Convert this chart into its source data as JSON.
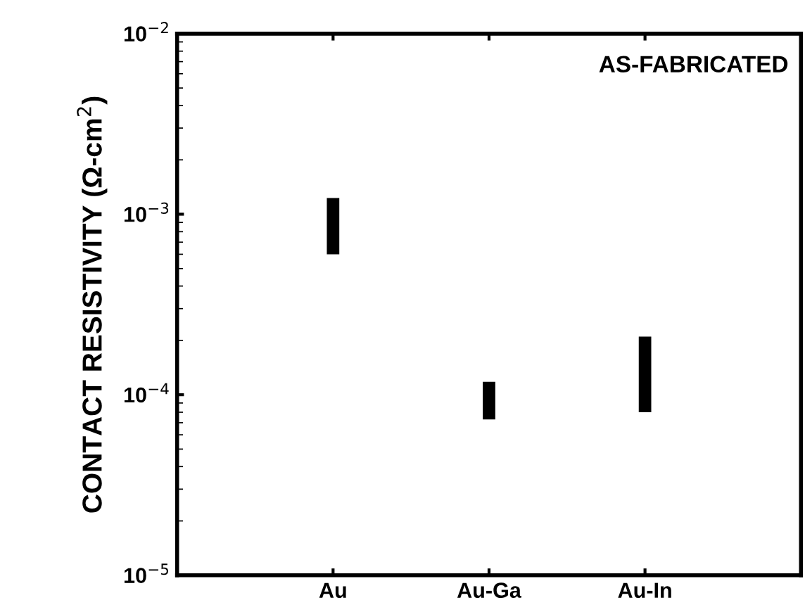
{
  "chart_data": {
    "type": "bar",
    "categories": [
      "Au",
      "Au-Ga",
      "Au-In"
    ],
    "base": [
      0.0006,
      7.3e-05,
      8e-05
    ],
    "values": [
      0.00063,
      4.5e-05,
      0.00013
    ],
    "color": "#000000",
    "log": "y",
    "ylim": [
      1e-05,
      0.01
    ],
    "yticks": [
      {
        "value": 1e-05,
        "label": "10$^{−5}$"
      },
      {
        "value": 0.0001,
        "label": "10$^{−4}$"
      },
      {
        "value": 0.001,
        "label": "10$^{−3}$"
      },
      {
        "value": 0.01,
        "label": "10$^{−2}$"
      }
    ],
    "ylabel": "CONTACT RESISTIVITY (Ω-cm$^{2}$)",
    "annotations": [
      "AS-FABRICATED"
    ]
  }
}
